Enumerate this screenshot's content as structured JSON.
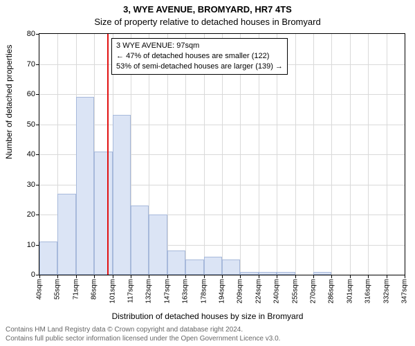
{
  "titles": {
    "address": "3, WYE AVENUE, BROMYARD, HR7 4TS",
    "subtitle": "Size of property relative to detached houses in Bromyard"
  },
  "ylabel": "Number of detached properties",
  "xlabel": "Distribution of detached houses by size in Bromyard",
  "footer": {
    "line1": "Contains HM Land Registry data © Crown copyright and database right 2024.",
    "line2": "Contains full public sector information licensed under the Open Government Licence v3.0."
  },
  "chart": {
    "type": "histogram",
    "ylim": [
      0,
      80
    ],
    "yticks": [
      0,
      10,
      20,
      30,
      40,
      50,
      60,
      70,
      80
    ],
    "xticks": [
      "40sqm",
      "55sqm",
      "71sqm",
      "86sqm",
      "101sqm",
      "117sqm",
      "132sqm",
      "147sqm",
      "163sqm",
      "178sqm",
      "194sqm",
      "209sqm",
      "224sqm",
      "240sqm",
      "255sqm",
      "270sqm",
      "286sqm",
      "301sqm",
      "316sqm",
      "332sqm",
      "347sqm"
    ],
    "bars": [
      11,
      27,
      59,
      41,
      53,
      23,
      20,
      8,
      5,
      6,
      5,
      1,
      1,
      1,
      0,
      1,
      0,
      0,
      0,
      0
    ],
    "bar_fill": "#dbe4f5",
    "bar_stroke": "#a7b9db",
    "grid_color": "#d9d9d9",
    "background_color": "#ffffff",
    "axis_color": "#000000",
    "marker": {
      "value_sqm": 97,
      "color": "#e11212"
    },
    "annotation": {
      "line1": "3 WYE AVENUE: 97sqm",
      "line2": "← 47% of detached houses are smaller (122)",
      "line3": "53% of semi-detached houses are larger (139) →",
      "border_color": "#000000",
      "bg_color": "#ffffff",
      "fontsize": 11
    }
  }
}
